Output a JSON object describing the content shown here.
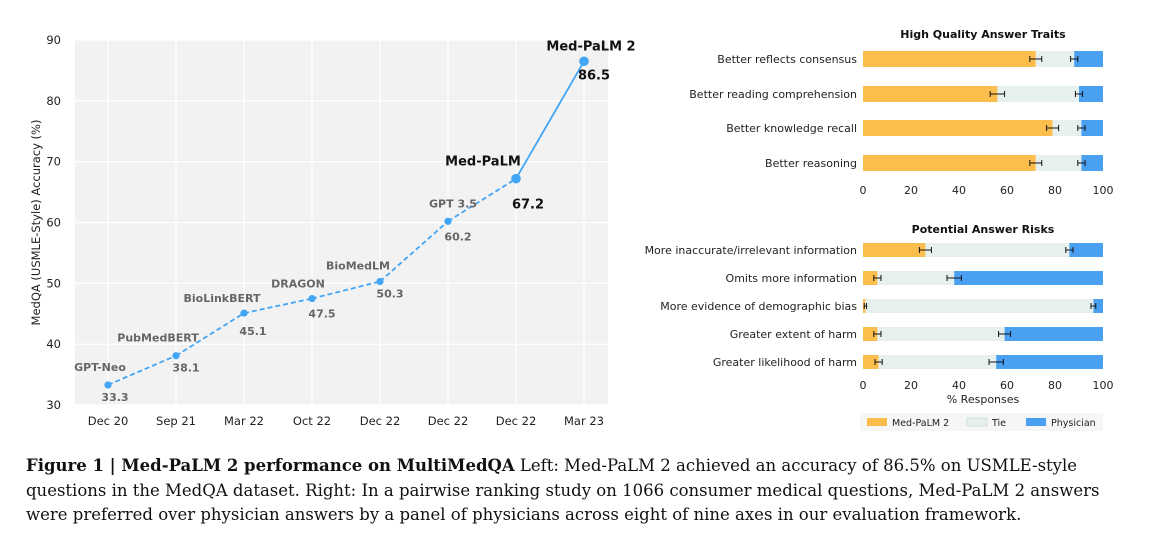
{
  "caption": {
    "label": "Figure 1 | Med-PaLM 2 performance on MultiMedQA",
    "text": "Left: Med-PaLM 2 achieved an accuracy of 86.5% on USMLE-style questions in the MedQA dataset. Right: In a pairwise ranking study on 1066 consumer medical questions, Med-PaLM 2 answers were preferred over physician answers by a panel of physicians across eight of nine axes in our evaluation framework."
  },
  "chart_data": [
    {
      "type": "line",
      "title": "",
      "xlabel": "",
      "ylabel": "MedQA (USMLE-Style) Accuracy (%)",
      "ylim": [
        30,
        90
      ],
      "yticks": [
        30,
        40,
        50,
        60,
        70,
        80,
        90
      ],
      "grid": true,
      "background": "#f2f2f2",
      "points": [
        {
          "date": "Dec 20",
          "model": "GPT-Neo",
          "value": 33.3,
          "value_label": "33.3",
          "highlight": false
        },
        {
          "date": "Sep 21",
          "model": "PubMedBERT",
          "value": 38.1,
          "value_label": "38.1",
          "highlight": false
        },
        {
          "date": "Mar 22",
          "model": "BioLinkBERT",
          "value": 45.1,
          "value_label": "45.1",
          "highlight": false
        },
        {
          "date": "Oct 22",
          "model": "DRAGON",
          "value": 47.5,
          "value_label": "47.5",
          "highlight": false
        },
        {
          "date": "Dec 22",
          "model": "BioMedLM",
          "value": 50.3,
          "value_label": "50.3",
          "highlight": false
        },
        {
          "date": "Dec 22",
          "model": "GPT 3.5",
          "value": 60.2,
          "value_label": "60.2",
          "highlight": false
        },
        {
          "date": "Dec 22",
          "model": "Med-PaLM",
          "value": 67.2,
          "value_label": "67.2",
          "highlight": true
        },
        {
          "date": "Mar 23",
          "model": "Med-PaLM 2",
          "value": 86.5,
          "value_label": "86.5",
          "highlight": true
        }
      ],
      "line_color": "#42a5f5",
      "dashed_segments_before": "Med-PaLM"
    },
    {
      "type": "bar",
      "orientation": "horizontal-stacked",
      "title": "High Quality Answer Traits",
      "xlim": [
        0,
        100
      ],
      "xticks": [
        0,
        20,
        40,
        60,
        80,
        100
      ],
      "categories": [
        "Better reflects consensus",
        "Better reading comprehension",
        "Better knowledge recall",
        "Better reasoning"
      ],
      "series": [
        {
          "name": "Med-PaLM 2",
          "values": [
            72,
            56,
            79,
            72
          ],
          "errors": [
            2.5,
            3,
            2.5,
            2.5
          ]
        },
        {
          "name": "Tie",
          "values": [
            16,
            34,
            12,
            19
          ],
          "errors": [
            1.5,
            1.5,
            1.5,
            1.5
          ]
        },
        {
          "name": "Physician",
          "values": [
            12,
            10,
            9,
            9
          ]
        }
      ]
    },
    {
      "type": "bar",
      "orientation": "horizontal-stacked",
      "title": "Potential Answer Risks",
      "xlabel": "% Responses",
      "xlim": [
        0,
        100
      ],
      "xticks": [
        0,
        20,
        40,
        60,
        80,
        100
      ],
      "categories": [
        "More inaccurate/irrelevant information",
        "Omits more information",
        "More evidence of demographic bias",
        "Greater extent of harm",
        "Greater likelihood of harm"
      ],
      "series": [
        {
          "name": "Med-PaLM 2",
          "values": [
            26,
            6,
            1,
            6,
            6.5
          ],
          "errors": [
            2.5,
            1.5,
            0.5,
            1.5,
            1.5
          ]
        },
        {
          "name": "Tie",
          "values": [
            60,
            32,
            95,
            53,
            49
          ],
          "errors": [
            1.5,
            3,
            1,
            2.5,
            3
          ]
        },
        {
          "name": "Physician",
          "values": [
            14,
            62,
            4,
            41,
            44.5
          ]
        }
      ]
    }
  ],
  "legend": [
    {
      "name": "Med-PaLM 2",
      "color": "#fbbd4c"
    },
    {
      "name": "Tie",
      "color": "#e6f0ef"
    },
    {
      "name": "Physician",
      "color": "#4aa0f0"
    }
  ],
  "colors": {
    "medpalm2": "#fbbd4c",
    "tie": "#e6f0ef",
    "physician": "#4aa0f0",
    "line": "#42a5f5"
  }
}
